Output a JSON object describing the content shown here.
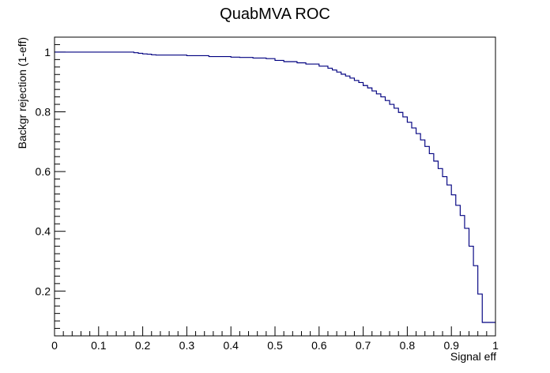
{
  "chart_data": {
    "type": "line",
    "title": "QuabMVA ROC",
    "xlabel": "Signal eff",
    "ylabel": "Backgr rejection (1-eff)",
    "xlim": [
      0,
      1
    ],
    "ylim": [
      0.05,
      1.05
    ],
    "grid": false,
    "x_ticks": [
      "0",
      "0.1",
      "0.2",
      "0.3",
      "0.4",
      "0.5",
      "0.6",
      "0.7",
      "0.8",
      "0.9",
      "1"
    ],
    "y_ticks": [
      "0.2",
      "0.4",
      "0.6",
      "0.8",
      "1"
    ],
    "series": [
      {
        "color": "#000080",
        "step": true,
        "x": [
          0.0,
          0.18,
          0.19,
          0.2,
          0.21,
          0.22,
          0.23,
          0.3,
          0.35,
          0.4,
          0.42,
          0.45,
          0.48,
          0.5,
          0.52,
          0.55,
          0.57,
          0.6,
          0.62,
          0.63,
          0.64,
          0.65,
          0.66,
          0.67,
          0.68,
          0.69,
          0.7,
          0.71,
          0.72,
          0.73,
          0.74,
          0.75,
          0.76,
          0.77,
          0.78,
          0.79,
          0.8,
          0.81,
          0.82,
          0.83,
          0.84,
          0.85,
          0.86,
          0.87,
          0.88,
          0.89,
          0.9,
          0.91,
          0.92,
          0.93,
          0.94,
          0.95,
          0.96,
          0.97,
          0.98,
          0.99,
          1.0
        ],
        "y": [
          1.0,
          0.998,
          0.996,
          0.994,
          0.993,
          0.991,
          0.99,
          0.988,
          0.985,
          0.983,
          0.982,
          0.98,
          0.978,
          0.972,
          0.968,
          0.964,
          0.96,
          0.953,
          0.946,
          0.94,
          0.933,
          0.926,
          0.92,
          0.913,
          0.905,
          0.898,
          0.888,
          0.88,
          0.87,
          0.86,
          0.85,
          0.838,
          0.825,
          0.812,
          0.798,
          0.783,
          0.765,
          0.746,
          0.727,
          0.706,
          0.684,
          0.66,
          0.635,
          0.61,
          0.583,
          0.555,
          0.522,
          0.487,
          0.453,
          0.41,
          0.35,
          0.285,
          0.19,
          0.095,
          0.095,
          0.095,
          0.095
        ]
      }
    ]
  }
}
